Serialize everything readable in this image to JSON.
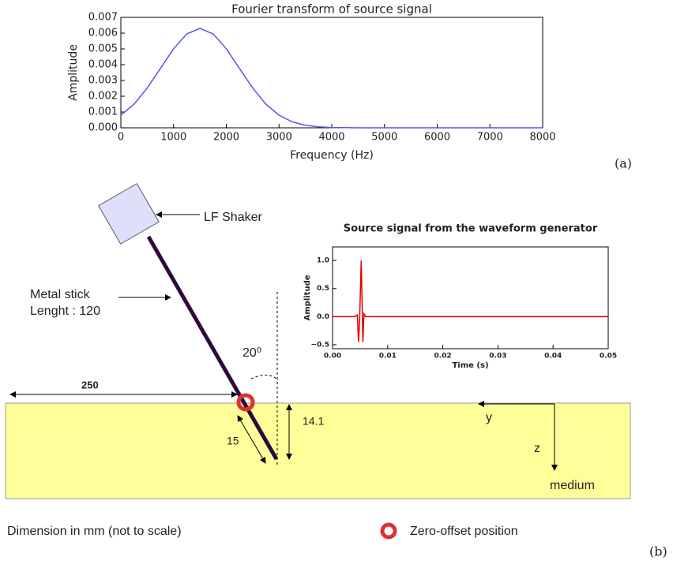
{
  "chart_data": [
    {
      "type": "line",
      "title": "Fourier transform of source signal",
      "x_label": "Frequency (Hz)",
      "y_label": "Amplitude",
      "x": [
        0,
        250,
        500,
        750,
        1000,
        1250,
        1500,
        1750,
        2000,
        2250,
        2500,
        2750,
        3000,
        3250,
        3500,
        3750,
        4000,
        4250,
        4500,
        5000,
        6000,
        7000,
        8000
      ],
      "series": [
        {
          "color": "#5555ee",
          "values": [
            0.0008,
            0.0015,
            0.00252,
            0.00376,
            0.00501,
            0.00595,
            0.0063,
            0.00595,
            0.00501,
            0.00376,
            0.00252,
            0.0015,
            0.0008,
            0.00038,
            0.00016,
            6e-05,
            2e-05,
            1e-05,
            0,
            0,
            0,
            0,
            0
          ]
        }
      ],
      "xlim": [
        0,
        8000
      ],
      "xticks": [
        0,
        1000,
        2000,
        3000,
        4000,
        5000,
        6000,
        7000,
        8000
      ],
      "ylim": [
        0,
        0.007
      ],
      "yticks": [
        {
          "value": 0,
          "label": "0.000"
        },
        0.001,
        0.002,
        0.003,
        0.004,
        0.005,
        0.006,
        0.007
      ]
    },
    {
      "type": "line",
      "title": "Source signal from the waveform generator",
      "x_label": "Time (s)",
      "y_label": "Amplitude",
      "x": [
        0,
        0.004,
        0.0045,
        0.0047,
        0.0049,
        0.0052,
        0.0055,
        0.0057,
        0.006,
        0.05
      ],
      "series": [
        {
          "color": "#e00000",
          "values": [
            0,
            0,
            0.03,
            -0.45,
            -0.1,
            1.0,
            -0.45,
            0.05,
            0,
            0
          ]
        }
      ],
      "xlim": [
        0,
        0.05
      ],
      "xticks": [
        {
          "value": 0,
          "label": "0.00"
        },
        0.01,
        0.02,
        0.03,
        0.04,
        0.05
      ],
      "ylim": [
        -0.57,
        1.24
      ],
      "yticks": [
        {
          "value": -0.5,
          "label": "−0.5"
        },
        {
          "value": 0,
          "label": "0.0"
        },
        0.5,
        {
          "value": 1,
          "label": "1.0"
        }
      ]
    }
  ],
  "panel_labels": [
    "(a)",
    "(b)"
  ],
  "diagram": {
    "shaker": "LF Shaker",
    "stick": "Metal stick",
    "stick_length": "Lenght : 120",
    "angle": "20⁰",
    "offset": "250",
    "depth": "14.1",
    "embedded": "15",
    "y_axis": "y",
    "z_axis": "z",
    "medium": "medium",
    "dimension_note": "Dimension in mm (not to scale)",
    "legend": "Zero-offset position"
  }
}
